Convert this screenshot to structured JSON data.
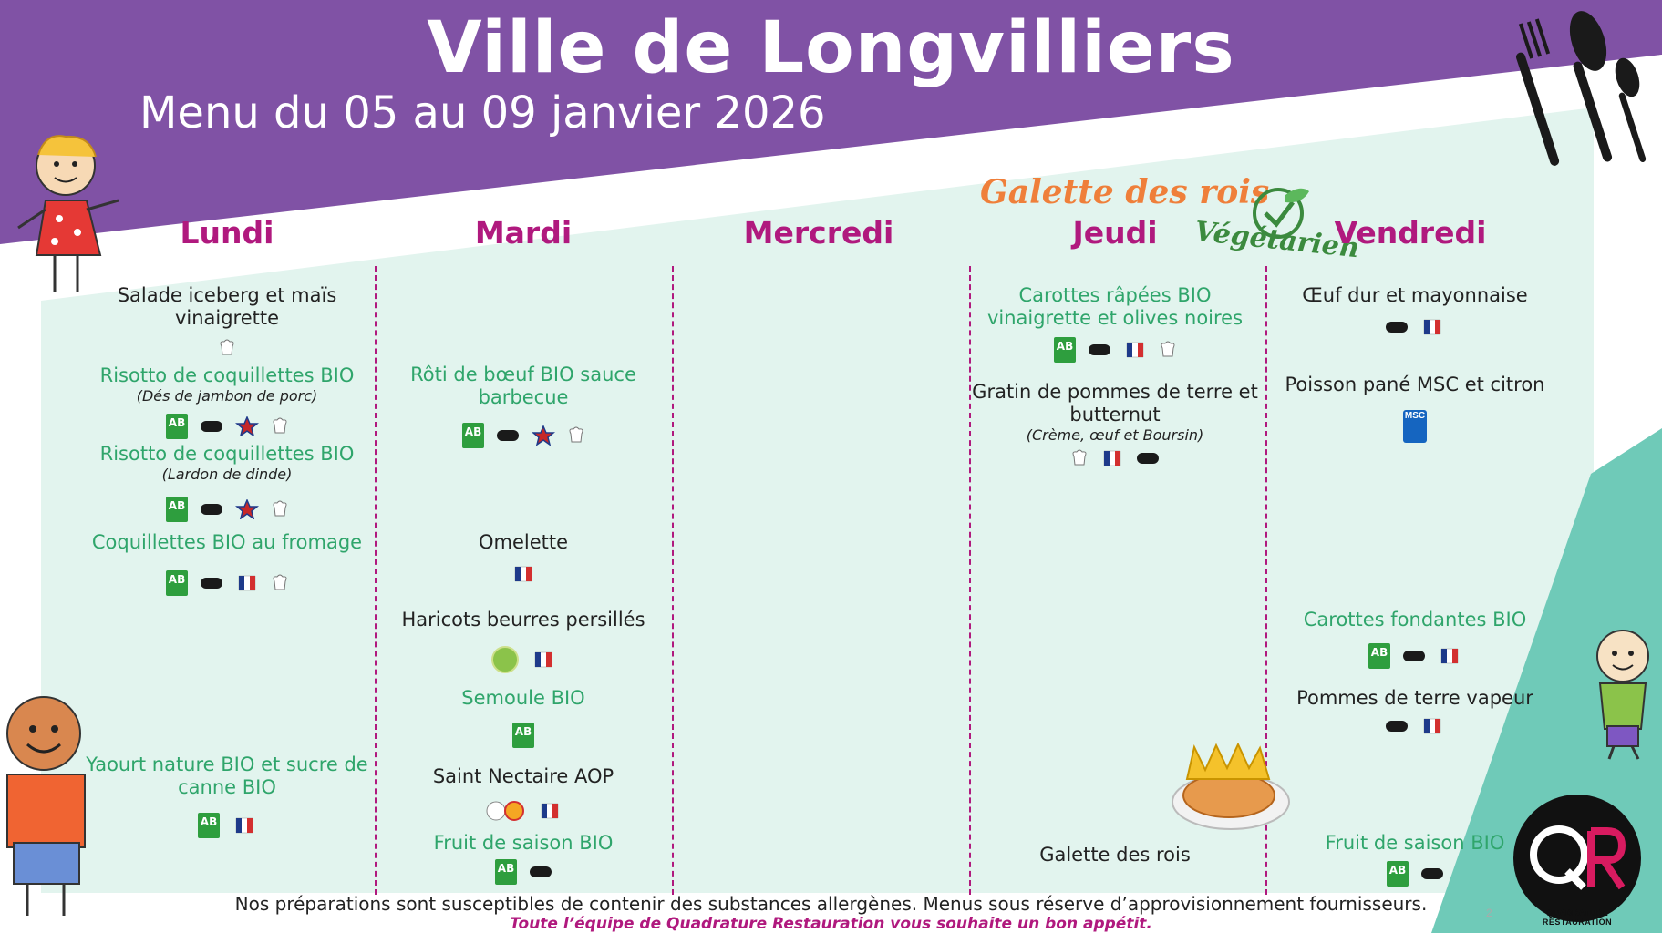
{
  "header": {
    "title": "Ville de Longvilliers",
    "subtitle": "Menu du 05 au 09 janvier 2026"
  },
  "days": {
    "lundi": "Lundi",
    "mardi": "Mardi",
    "mercredi": "Mercredi",
    "jeudi": "Jeudi",
    "vendredi": "Vendredi"
  },
  "event": {
    "galette_title": "Galette des rois",
    "vegetarien": "Végétarien"
  },
  "lundi": {
    "entree": "Salade iceberg et maïs vinaigrette",
    "plat1": "Risotto de coquillettes BIO",
    "plat1_note": "(Dés de jambon de porc)",
    "plat2": "Risotto de coquillettes BIO",
    "plat2_note": "(Lardon de dinde)",
    "plat3": "Coquillettes BIO au fromage",
    "dessert": "Yaourt nature BIO et sucre de canne BIO"
  },
  "mardi": {
    "plat": "Rôti de bœuf BIO sauce barbecue",
    "plat_alt": "Omelette",
    "legume": "Haricots beurres persillés",
    "feculent": "Semoule BIO",
    "fromage": "Saint Nectaire AOP",
    "dessert": "Fruit de saison BIO"
  },
  "jeudi": {
    "entree": "Carottes râpées BIO vinaigrette et olives noires",
    "plat": "Gratin de pommes de terre et butternut",
    "plat_note": "(Crème, œuf et Boursin)",
    "dessert": "Galette des rois"
  },
  "vendredi": {
    "entree": "Œuf dur et mayonnaise",
    "plat": "Poisson pané MSC et citron",
    "legume": "Carottes fondantes BIO",
    "feculent": "Pommes de terre vapeur",
    "dessert": "Fruit de saison BIO"
  },
  "labels": {
    "ab": "AB",
    "msc": "MSC"
  },
  "footer": {
    "disclaimer": "Nos préparations sont susceptibles de contenir des substances allergènes. Menus sous réserve d’approvisionnement fournisseurs.",
    "wish": "Toute l’équipe de Quadrature Restauration vous souhaite un bon appétit.",
    "page": "2",
    "logo_caption": "QUADRATURE RESTAURATION"
  },
  "colors": {
    "purple": "#8052a5",
    "mint": "#e2f4ee",
    "teal": "#6fcab8",
    "magenta": "#b0197e",
    "green": "#2fa56b"
  }
}
